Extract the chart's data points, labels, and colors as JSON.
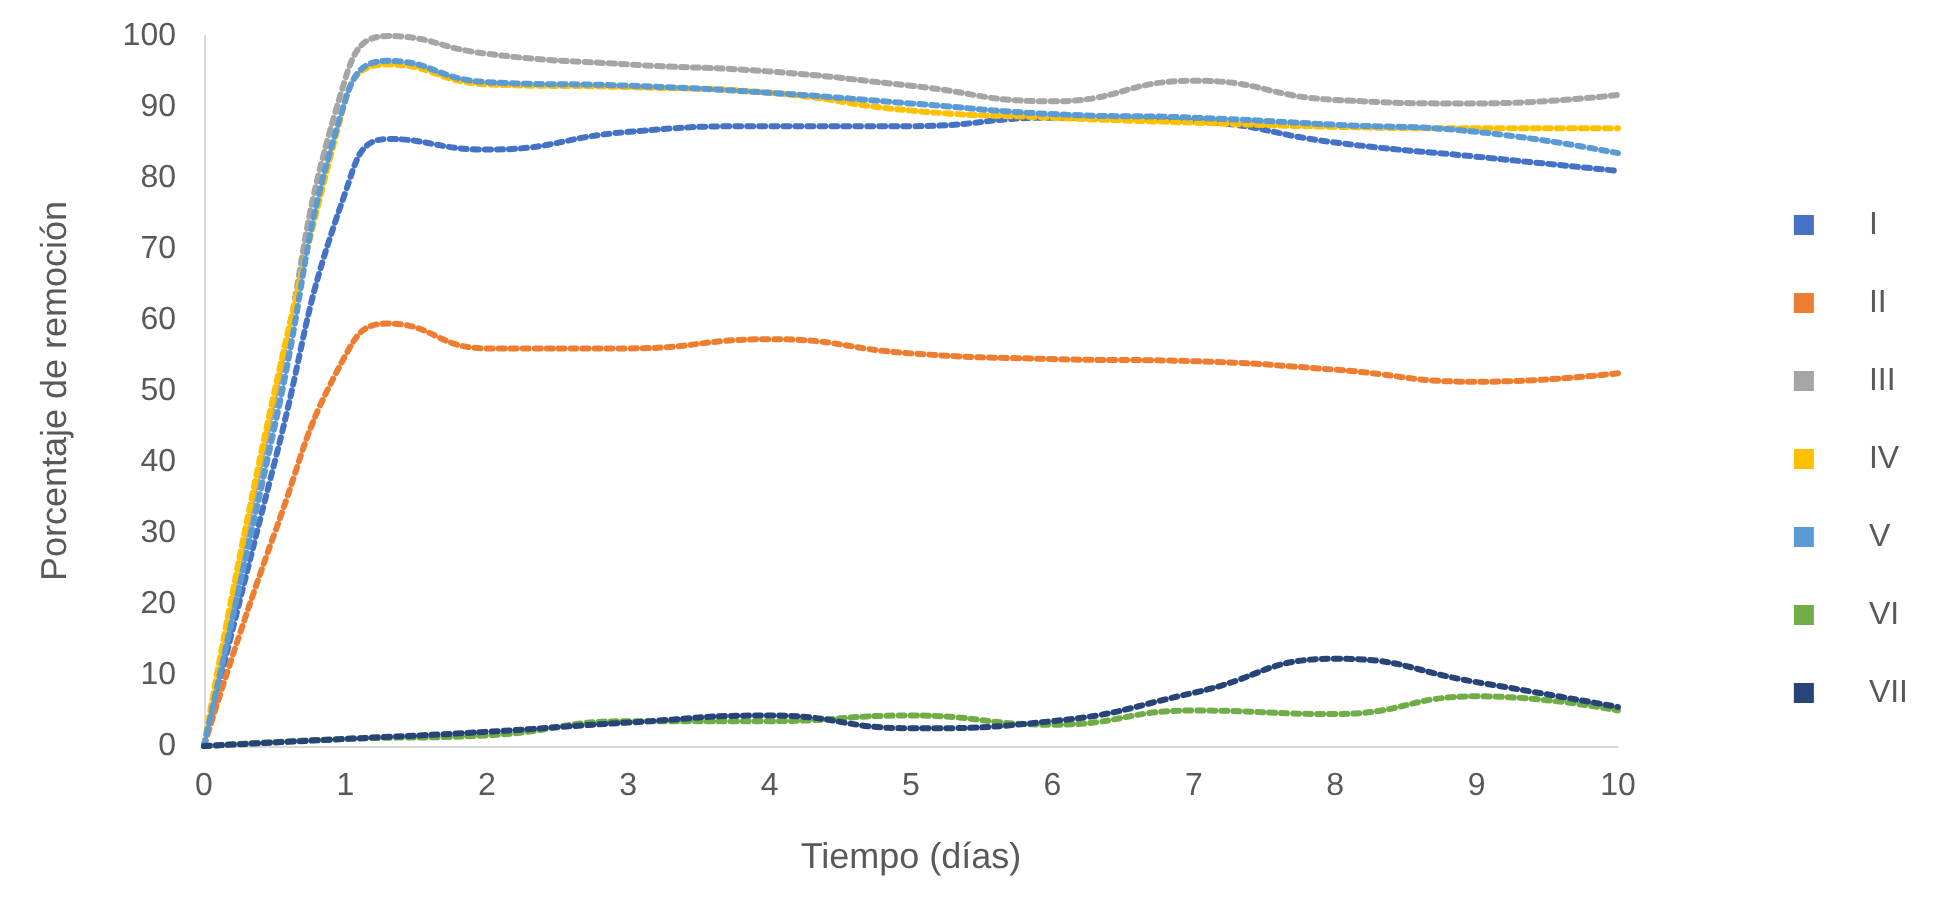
{
  "chart_data": {
    "type": "line",
    "xlabel": "Tiempo (días)",
    "ylabel": "Porcentaje de remoción",
    "xlim": [
      0,
      10
    ],
    "xticks": [
      0,
      1,
      2,
      3,
      4,
      5,
      6,
      7,
      8,
      9,
      10
    ],
    "ylim": [
      0,
      100
    ],
    "yticks": [
      0,
      10,
      20,
      30,
      40,
      50,
      60,
      70,
      80,
      90,
      100
    ],
    "grid": false,
    "legend": "right",
    "marker": "none",
    "line_style": "dotted",
    "series": [
      {
        "name": "I",
        "color": "#4472c4",
        "x": [
          0,
          0.5,
          1,
          1.3,
          2,
          3,
          4,
          5,
          6,
          7,
          8,
          9,
          10
        ],
        "values": [
          0,
          40,
          78,
          85.5,
          84,
          86.5,
          87.3,
          87.3,
          88.5,
          88,
          85,
          83,
          81
        ]
      },
      {
        "name": "II",
        "color": "#ed7d31",
        "x": [
          0,
          0.5,
          1,
          1.3,
          2,
          3,
          4,
          5,
          6,
          7,
          8,
          9,
          10
        ],
        "values": [
          0,
          30,
          55,
          59.5,
          56,
          56,
          57.3,
          55.3,
          54.5,
          54.2,
          53,
          51.3,
          52.5
        ]
      },
      {
        "name": "III",
        "color": "#a5a5a5",
        "x": [
          0,
          0.5,
          1,
          1.3,
          2,
          3,
          4,
          5,
          6,
          7,
          8,
          9,
          10
        ],
        "values": [
          0,
          48,
          94,
          100,
          97.5,
          96,
          95,
          93,
          90.8,
          93.7,
          91,
          90.5,
          91.7
        ]
      },
      {
        "name": "IV",
        "color": "#ffc000",
        "x": [
          0,
          1,
          1.3,
          2,
          3,
          4,
          5,
          6,
          7,
          8,
          9,
          10
        ],
        "values": [
          0,
          91,
          96,
          93.2,
          92.8,
          92,
          89.5,
          88.5,
          87.8,
          87.2,
          87,
          87
        ]
      },
      {
        "name": "V",
        "color": "#5b9bd5",
        "x": [
          0,
          0.5,
          1,
          1.3,
          2,
          3,
          4,
          5,
          6,
          7,
          8,
          9,
          10
        ],
        "values": [
          0,
          45,
          91,
          96.5,
          93.5,
          93,
          92,
          90.5,
          89,
          88.5,
          87.5,
          86.5,
          83.5
        ]
      },
      {
        "name": "VI",
        "color": "#70ad47",
        "x": [
          0,
          1,
          2,
          3,
          4,
          5,
          6,
          7,
          8,
          9,
          10
        ],
        "values": [
          0,
          1,
          1.5,
          3.5,
          3.5,
          4.3,
          3,
          5,
          4.5,
          7,
          5
        ]
      },
      {
        "name": "VII",
        "color": "#264478",
        "x": [
          0,
          1,
          2,
          3,
          4,
          5,
          6,
          7,
          8,
          9,
          10
        ],
        "values": [
          0,
          1,
          2,
          3.3,
          4.3,
          2.5,
          3.5,
          7.5,
          12.3,
          9,
          5.5
        ]
      }
    ]
  }
}
